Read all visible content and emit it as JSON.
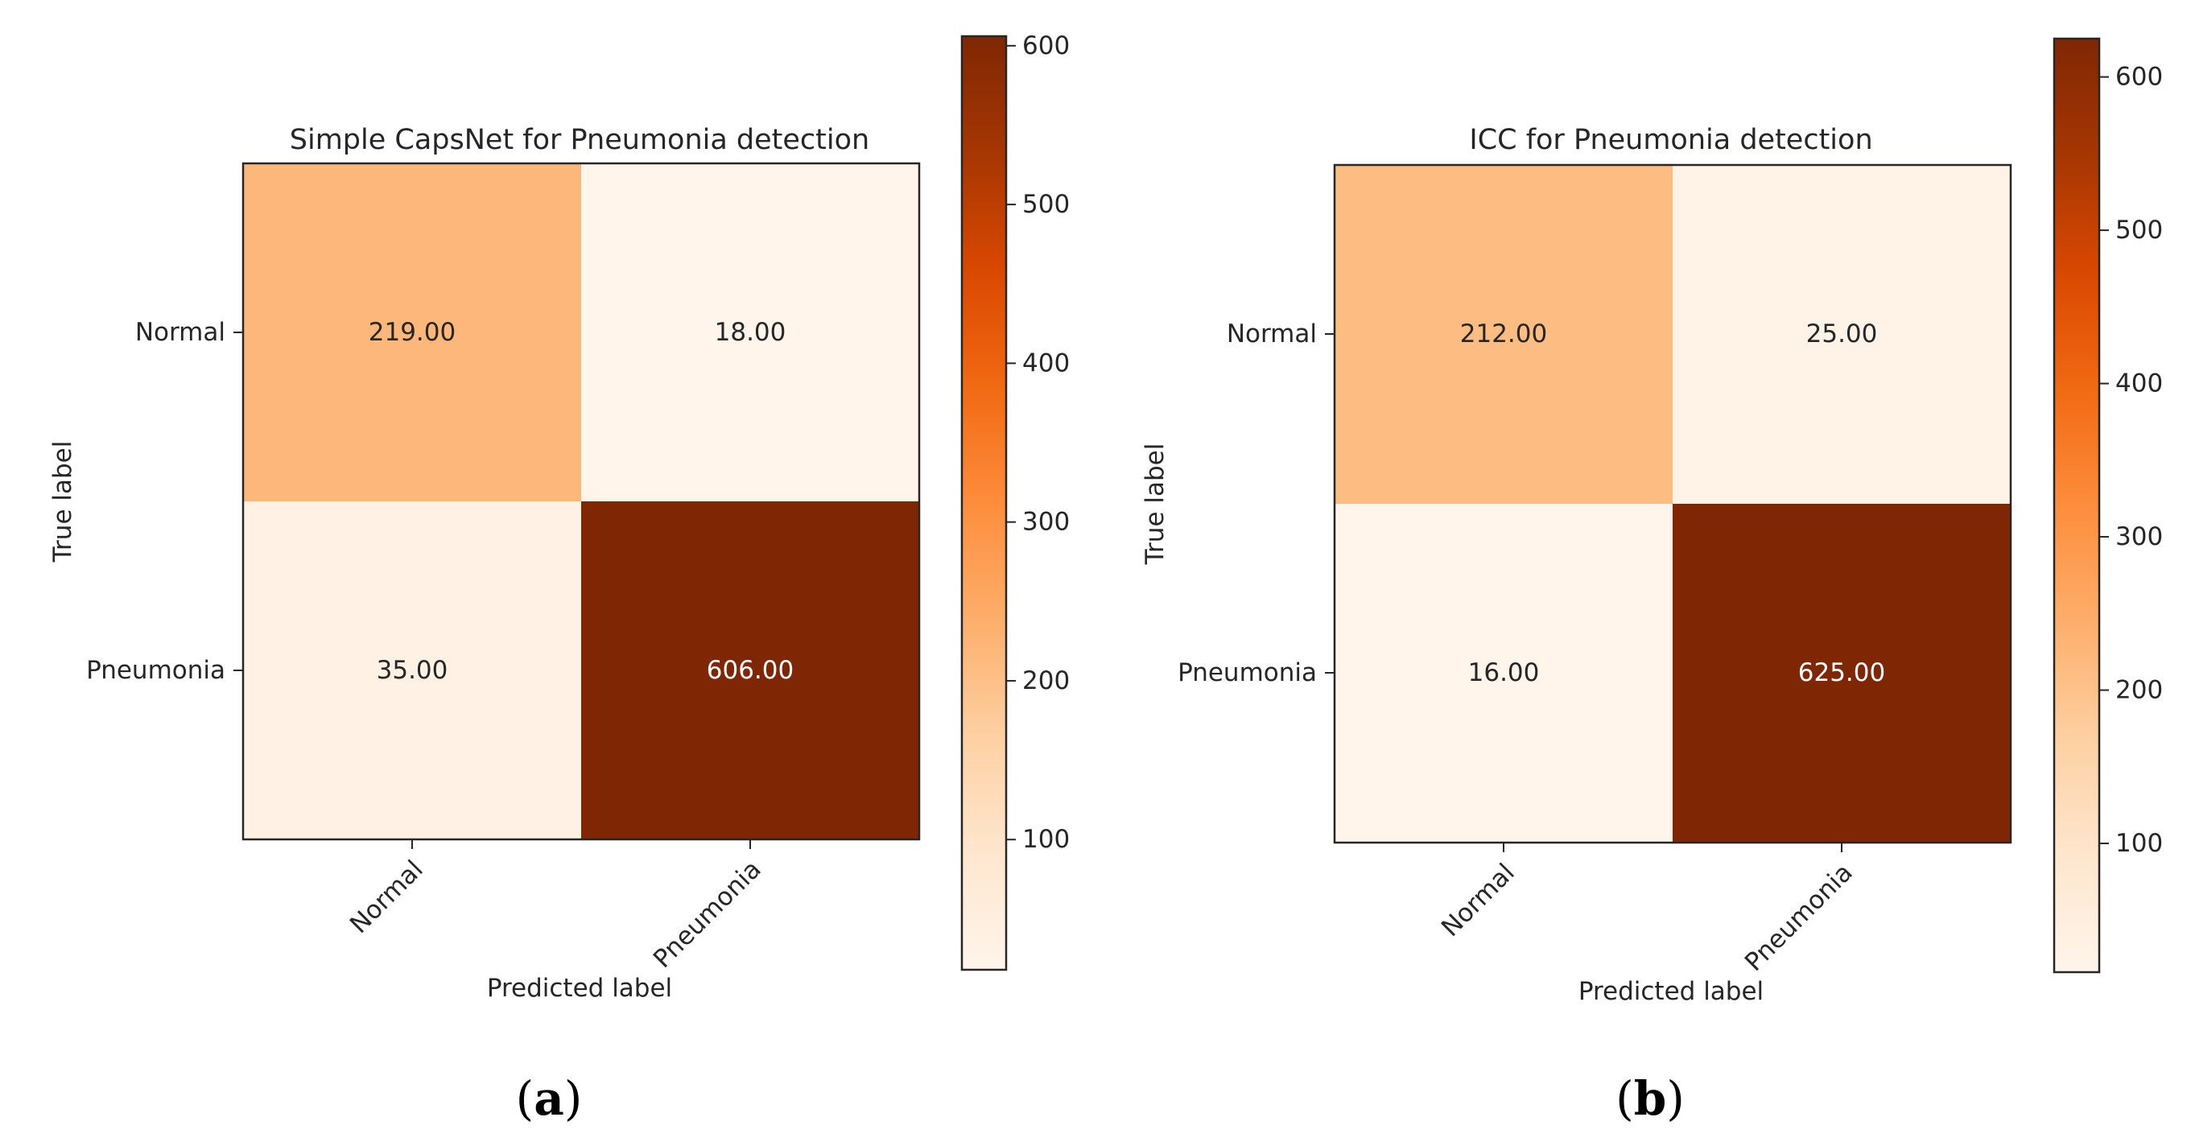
{
  "chart_data": [
    {
      "type": "heatmap",
      "title": "Simple CapsNet for Pneumonia detection",
      "xlabel": "Predicted label",
      "ylabel": "True label",
      "x_categories": [
        "Normal",
        "Pneumonia"
      ],
      "y_categories": [
        "Normal",
        "Pneumonia"
      ],
      "values": [
        [
          219.0,
          18.0
        ],
        [
          35.0,
          606.0
        ]
      ],
      "cell_labels": [
        [
          "219.00",
          "18.00"
        ],
        [
          "35.00",
          "606.00"
        ]
      ],
      "colormap": "Oranges",
      "colorbar": {
        "range": [
          18,
          606
        ],
        "ticks": [
          100,
          200,
          300,
          400,
          500,
          600
        ]
      },
      "caption": {
        "open": "(",
        "letter": "a",
        "close": ")"
      }
    },
    {
      "type": "heatmap",
      "title": "ICC for Pneumonia detection",
      "xlabel": "Predicted label",
      "ylabel": "True label",
      "x_categories": [
        "Normal",
        "Pneumonia"
      ],
      "y_categories": [
        "Normal",
        "Pneumonia"
      ],
      "values": [
        [
          212.0,
          25.0
        ],
        [
          16.0,
          625.0
        ]
      ],
      "cell_labels": [
        [
          "212.00",
          "25.00"
        ],
        [
          "16.00",
          "625.00"
        ]
      ],
      "colormap": "Oranges",
      "colorbar": {
        "range": [
          16,
          625
        ],
        "ticks": [
          100,
          200,
          300,
          400,
          500,
          600
        ]
      },
      "caption": {
        "open": "(",
        "letter": "b",
        "close": ")"
      }
    }
  ]
}
